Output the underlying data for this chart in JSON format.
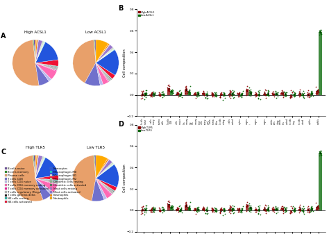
{
  "cell_types": [
    "B cells naive",
    "B cells memory",
    "Plasma cells",
    "T cells CD8",
    "T cells CD4 naive",
    "T cells CD4 memory resting",
    "T cells CD4 memory activated",
    "T cells regulatory (Tregs)",
    "T cells gamma delta",
    "NK cells resting",
    "NK cells activated",
    "Monocytes",
    "Macrophages M0",
    "Macrophages M1",
    "Macrophages M2",
    "Dendritic cells resting",
    "Dendritic cells activated",
    "Mast cells resting",
    "Mast cells activated",
    "Eosinophils",
    "Neutrophils"
  ],
  "pie_colors": [
    "#6A4C9C",
    "#1f8b1f",
    "#E8A06A",
    "#7070CC",
    "#BBBBEE",
    "#FF69B4",
    "#EE1199",
    "#BBBBBB",
    "#111111",
    "#22BBAA",
    "#EE1133",
    "#2255DD",
    "#11CCCC",
    "#DDDDDD",
    "#AADDAA",
    "#88BB88",
    "#557755",
    "#9977CC",
    "#8877DD",
    "#FF8800",
    "#FFAA00"
  ],
  "high_acsl1_pie": [
    0.012,
    0.006,
    0.5,
    0.075,
    0.022,
    0.065,
    0.006,
    0.02,
    0.005,
    0.005,
    0.045,
    0.155,
    0.004,
    0.005,
    0.005,
    0.005,
    0.002,
    0.028,
    0.005,
    0.01,
    0.006
  ],
  "low_acsl1_pie": [
    0.01,
    0.006,
    0.42,
    0.115,
    0.022,
    0.042,
    0.006,
    0.02,
    0.005,
    0.005,
    0.033,
    0.195,
    0.004,
    0.005,
    0.005,
    0.005,
    0.002,
    0.028,
    0.005,
    0.01,
    0.095
  ],
  "high_tlr5_pie": [
    0.012,
    0.006,
    0.52,
    0.065,
    0.022,
    0.055,
    0.006,
    0.02,
    0.005,
    0.005,
    0.032,
    0.152,
    0.004,
    0.005,
    0.005,
    0.005,
    0.002,
    0.028,
    0.005,
    0.01,
    0.006
  ],
  "low_tlr5_pie": [
    0.01,
    0.006,
    0.47,
    0.09,
    0.022,
    0.042,
    0.006,
    0.02,
    0.005,
    0.005,
    0.03,
    0.172,
    0.004,
    0.005,
    0.005,
    0.005,
    0.002,
    0.028,
    0.005,
    0.01,
    0.088
  ],
  "bar_labels": [
    "B cells naive",
    "B cells memory",
    "Plasma cells",
    "T cells CD8",
    "T cells CD4 naive",
    "T cells CD4 memory resting",
    "T cells CD4 memory activated",
    "T cells regulatory (Tregs)",
    "T cells gamma delta",
    "NK cells resting",
    "NK cells activated",
    "Monocytes",
    "Macrophages M0",
    "Macrophages M1",
    "Macrophages M2",
    "Dendritic cells resting",
    "Dendritic cells activated",
    "Mast cells resting",
    "Mast cells activated",
    "Eosinophils",
    "Neutrophils"
  ],
  "acsl1_high_base": [
    0.008,
    0.005,
    0.008,
    0.055,
    0.008,
    0.045,
    0.005,
    0.012,
    0.004,
    0.004,
    0.008,
    0.005,
    0.04,
    0.006,
    0.006,
    0.006,
    0.005,
    0.005,
    0.004,
    0.008,
    0.04
  ],
  "acsl1_low_base": [
    0.008,
    0.004,
    0.006,
    0.035,
    0.006,
    0.025,
    0.004,
    0.01,
    0.004,
    0.004,
    0.006,
    0.005,
    0.028,
    0.005,
    0.005,
    0.005,
    0.004,
    0.005,
    0.004,
    0.006,
    0.6
  ],
  "tlr5_high_base": [
    0.008,
    0.005,
    0.008,
    0.05,
    0.008,
    0.04,
    0.005,
    0.012,
    0.004,
    0.004,
    0.008,
    0.005,
    0.038,
    0.006,
    0.006,
    0.006,
    0.005,
    0.005,
    0.004,
    0.008,
    0.035
  ],
  "tlr5_low_base": [
    0.008,
    0.004,
    0.006,
    0.032,
    0.006,
    0.022,
    0.004,
    0.01,
    0.004,
    0.004,
    0.006,
    0.005,
    0.025,
    0.005,
    0.005,
    0.005,
    0.004,
    0.005,
    0.004,
    0.006,
    0.55
  ],
  "high_color": "#8B0000",
  "low_color": "#006400",
  "ylim_B": [
    -0.2,
    0.8
  ],
  "ylim_D": [
    -0.2,
    0.8
  ]
}
